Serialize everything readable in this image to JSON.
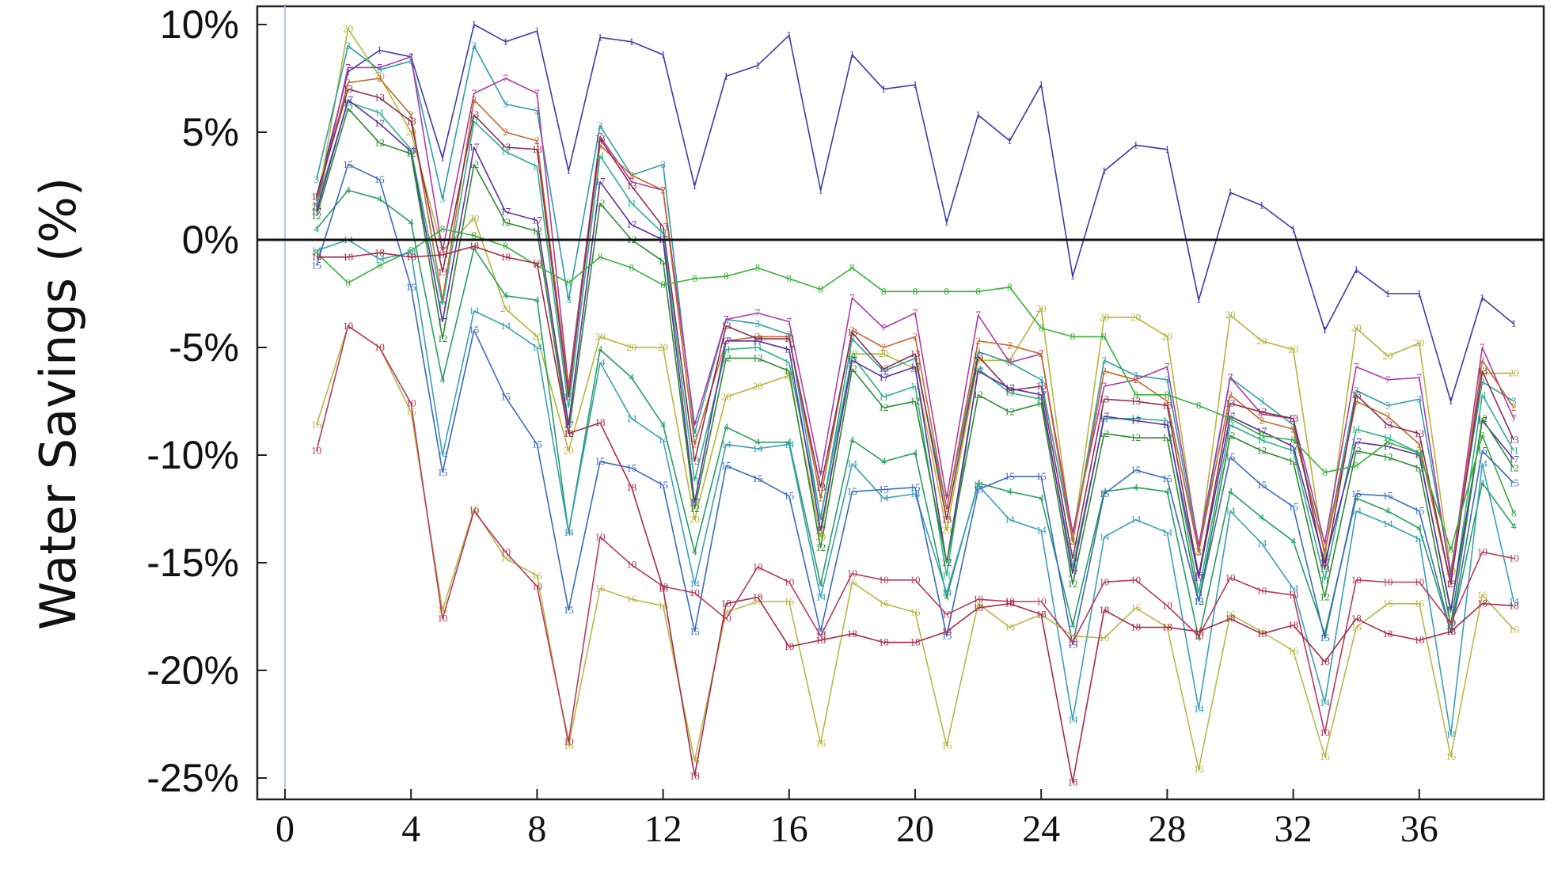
{
  "chart_data": {
    "type": "line",
    "title": "",
    "xlabel": "",
    "ylabel": "Water Savings (%)",
    "xlim": [
      0,
      39
    ],
    "ylim": [
      -26,
      10.5
    ],
    "xticks": [
      0,
      4,
      8,
      12,
      16,
      20,
      24,
      28,
      32,
      36
    ],
    "xtick_labels": [
      "0",
      "4",
      "8",
      "12",
      "16",
      "20",
      "24",
      "28",
      "32",
      "36"
    ],
    "yticks": [
      10,
      5,
      0,
      -5,
      -10,
      -15,
      -20,
      -25
    ],
    "ytick_labels": [
      "10%",
      "5%",
      "0%",
      "-5%",
      "-10%",
      "-15%",
      "-20%",
      "-25%"
    ],
    "reference_line_y": 0,
    "x": [
      1,
      2,
      3,
      4,
      5,
      6,
      7,
      8,
      9,
      10,
      11,
      12,
      13,
      14,
      15,
      16,
      17,
      18,
      19,
      20,
      21,
      22,
      23,
      24,
      25,
      26,
      27,
      28,
      29,
      30,
      31,
      32,
      33,
      34,
      35,
      36,
      37,
      38,
      39
    ],
    "series": [
      {
        "name": "1",
        "color": "#3a3ab0",
        "values": [
          2.0,
          7.8,
          8.8,
          8.5,
          3.8,
          10.0,
          9.2,
          9.7,
          3.2,
          9.4,
          9.2,
          8.6,
          2.5,
          7.6,
          8.1,
          9.5,
          2.3,
          8.6,
          7.0,
          7.2,
          0.8,
          5.8,
          4.6,
          7.2,
          -1.7,
          3.2,
          4.4,
          4.2,
          -2.8,
          2.2,
          1.6,
          0.5,
          -4.2,
          -1.4,
          -2.5,
          -2.5,
          -7.5,
          -2.7,
          -3.9
        ]
      },
      {
        "name": "20",
        "color": "#b7b53c",
        "values": [
          1.5,
          9.8,
          7.6,
          5.0,
          -0.5,
          1.0,
          -3.2,
          -4.5,
          -9.8,
          -4.5,
          -5.0,
          -5.0,
          -13.0,
          -7.3,
          -6.8,
          -6.3,
          -13.8,
          -5.3,
          -5.3,
          -6.0,
          -13.5,
          -5.6,
          -5.6,
          -3.2,
          -14.0,
          -3.6,
          -3.6,
          -4.5,
          -14.5,
          -3.5,
          -4.7,
          -5.1,
          -14.8,
          -4.1,
          -5.4,
          -4.8,
          -15.4,
          -6.2,
          -6.2
        ]
      },
      {
        "name": "3",
        "color": "#2f9ea8",
        "values": [
          2.8,
          9.0,
          7.9,
          8.3,
          1.9,
          9.0,
          6.3,
          6.0,
          -2.8,
          5.3,
          3.0,
          3.5,
          -9.0,
          -3.7,
          -3.9,
          -4.4,
          -13.0,
          -4.6,
          -6.1,
          -5.5,
          -12.5,
          -5.2,
          -5.7,
          -6.5,
          -14.0,
          -5.6,
          -6.3,
          -6.5,
          -14.5,
          -6.4,
          -7.5,
          -8.6,
          -14.5,
          -7.0,
          -7.7,
          -7.4,
          -15.5,
          -6.6,
          -7.5
        ]
      },
      {
        "name": "7",
        "color": "#b03aa8",
        "values": [
          1.5,
          8.0,
          8.0,
          8.5,
          -0.5,
          6.8,
          7.5,
          6.8,
          -6.8,
          4.8,
          2.7,
          2.3,
          -8.6,
          -3.7,
          -3.4,
          -3.8,
          -10.9,
          -2.7,
          -4.1,
          -3.4,
          -12.0,
          -3.5,
          -5.7,
          -5.3,
          -13.6,
          -6.8,
          -6.5,
          -5.9,
          -14.2,
          -6.4,
          -8.1,
          -8.3,
          -14.1,
          -5.9,
          -6.5,
          -6.4,
          -15.7,
          -5.0,
          -8.3
        ]
      },
      {
        "name": "2",
        "color": "#c26a2c",
        "values": [
          1.8,
          7.3,
          7.5,
          5.8,
          -2.8,
          6.5,
          5.0,
          4.6,
          -7.0,
          4.4,
          3.0,
          2.3,
          -9.5,
          -4.7,
          -4.5,
          -4.5,
          -12.0,
          -4.2,
          -5.0,
          -4.5,
          -12.5,
          -4.7,
          -4.9,
          -5.3,
          -14.0,
          -6.1,
          -6.5,
          -7.5,
          -14.5,
          -7.2,
          -8.4,
          -8.8,
          -14.5,
          -7.5,
          -8.2,
          -9.5,
          -16.0,
          -5.6,
          -7.8
        ]
      },
      {
        "name": "13",
        "color": "#8a3050",
        "values": [
          2.0,
          7.0,
          6.6,
          5.5,
          -1.5,
          5.8,
          4.3,
          4.2,
          -7.3,
          4.7,
          2.5,
          0.6,
          -10.3,
          -4.0,
          -4.6,
          -4.6,
          -11.5,
          -4.3,
          -6.0,
          -5.3,
          -13.0,
          -5.4,
          -7.0,
          -6.8,
          -14.8,
          -7.4,
          -7.5,
          -7.7,
          -15.6,
          -7.6,
          -8.0,
          -8.3,
          -15.3,
          -7.2,
          -8.6,
          -9.0,
          -16.0,
          -6.1,
          -9.3
        ]
      },
      {
        "name": "11",
        "color": "#2fb08c",
        "values": [
          1.6,
          6.4,
          5.9,
          4.2,
          -3.0,
          5.5,
          4.1,
          3.4,
          -7.8,
          3.9,
          1.7,
          0.3,
          -11.2,
          -5.1,
          -5.0,
          -5.7,
          -12.9,
          -5.4,
          -7.3,
          -6.8,
          -15.6,
          -6.0,
          -7.1,
          -7.4,
          -15.2,
          -8.3,
          -8.3,
          -8.4,
          -16.4,
          -8.6,
          -9.3,
          -9.8,
          -15.8,
          -8.8,
          -9.2,
          -9.9,
          -17.3,
          -7.2,
          -9.8
        ]
      },
      {
        "name": "17",
        "color": "#5a30a0",
        "values": [
          1.3,
          6.5,
          5.4,
          4.1,
          -3.8,
          4.3,
          1.3,
          0.9,
          -8.6,
          2.7,
          0.7,
          0.0,
          -12.2,
          -4.7,
          -4.7,
          -5.1,
          -13.5,
          -5.6,
          -6.4,
          -5.9,
          -15.0,
          -6.1,
          -6.9,
          -7.2,
          -15.5,
          -8.2,
          -8.4,
          -8.6,
          -15.7,
          -8.2,
          -8.9,
          -9.6,
          -15.0,
          -9.4,
          -9.6,
          -10.0,
          -17.2,
          -8.4,
          -10.2
        ]
      },
      {
        "name": "12",
        "color": "#2f8a30",
        "values": [
          1.1,
          6.1,
          4.5,
          4.0,
          -4.6,
          3.5,
          0.8,
          0.4,
          -9.0,
          1.7,
          0.0,
          -1.0,
          -12.5,
          -5.5,
          -5.5,
          -6.1,
          -14.3,
          -6.0,
          -7.8,
          -7.5,
          -15.0,
          -7.2,
          -8.0,
          -7.6,
          -16.0,
          -9.0,
          -9.2,
          -9.2,
          -16.8,
          -9.1,
          -9.8,
          -10.3,
          -16.6,
          -9.8,
          -10.1,
          -10.6,
          -17.9,
          -8.3,
          -10.6
        ]
      },
      {
        "name": "8",
        "color": "#38b038",
        "values": [
          -0.6,
          -2.0,
          -1.2,
          -0.5,
          0.5,
          0.2,
          -0.3,
          -1.2,
          -2.0,
          -0.8,
          -1.3,
          -2.1,
          -1.8,
          -1.7,
          -1.3,
          -1.8,
          -2.3,
          -1.3,
          -2.4,
          -2.4,
          -2.4,
          -2.4,
          -2.2,
          -4.1,
          -4.5,
          -4.5,
          -7.2,
          -7.2,
          -7.7,
          -8.3,
          -9.1,
          -9.3,
          -10.8,
          -10.5,
          -9.4,
          -9.9,
          -14.4,
          -9.1,
          -12.7
        ]
      },
      {
        "name": "4",
        "color": "#26a060",
        "values": [
          0.5,
          2.3,
          1.9,
          0.8,
          -6.5,
          -0.4,
          -2.6,
          -2.8,
          -13.6,
          -5.1,
          -6.4,
          -8.6,
          -14.5,
          -8.7,
          -9.4,
          -9.4,
          -16.0,
          -9.3,
          -10.3,
          -9.9,
          -16.6,
          -11.3,
          -11.7,
          -12.0,
          -17.9,
          -11.7,
          -11.5,
          -11.7,
          -18.5,
          -11.7,
          -12.9,
          -14.0,
          -18.3,
          -12.0,
          -12.6,
          -13.4,
          -18.2,
          -11.3,
          -13.3
        ]
      },
      {
        "name": "14",
        "color": "#3aa0b8",
        "values": [
          -0.5,
          0.0,
          -0.9,
          -0.6,
          -10.0,
          -3.3,
          -4.0,
          -5.0,
          -13.6,
          -5.7,
          -8.3,
          -9.3,
          -16.0,
          -9.5,
          -9.7,
          -9.5,
          -16.6,
          -10.4,
          -12.0,
          -11.8,
          -16.4,
          -11.4,
          -13.0,
          -13.5,
          -22.3,
          -13.8,
          -13.0,
          -13.6,
          -21.8,
          -12.6,
          -14.1,
          -16.2,
          -21.5,
          -12.6,
          -13.2,
          -13.9,
          -23.0,
          -10.4,
          -16.8
        ]
      },
      {
        "name": "15",
        "color": "#3a6ac0",
        "values": [
          -1.2,
          3.5,
          2.8,
          -2.2,
          -10.8,
          -4.2,
          -7.3,
          -9.5,
          -17.2,
          -10.3,
          -10.6,
          -11.4,
          -18.2,
          -10.5,
          -11.1,
          -11.9,
          -18.2,
          -11.7,
          -11.6,
          -11.5,
          -18.4,
          -11.6,
          -11.0,
          -11.0,
          -18.8,
          -11.8,
          -10.7,
          -11.1,
          -16.8,
          -10.1,
          -11.4,
          -12.4,
          -18.5,
          -11.8,
          -11.9,
          -12.6,
          -18.2,
          -9.8,
          -11.3
        ]
      },
      {
        "name": "16",
        "color": "#b8b84a",
        "values": [
          -8.6,
          -4.0,
          -5.0,
          -8.0,
          -17.2,
          -12.5,
          -14.8,
          -15.6,
          -23.5,
          -16.2,
          -16.7,
          -17.0,
          -24.2,
          -17.3,
          -16.8,
          -16.8,
          -23.4,
          -15.9,
          -16.9,
          -17.3,
          -23.5,
          -16.9,
          -18.0,
          -17.4,
          -18.4,
          -18.5,
          -17.1,
          -18.0,
          -24.6,
          -17.4,
          -18.2,
          -19.1,
          -24.0,
          -18.0,
          -16.9,
          -16.9,
          -24.0,
          -16.5,
          -18.1
        ]
      },
      {
        "name": "10",
        "color": "#b83a5a",
        "values": [
          -9.8,
          -4.0,
          -5.0,
          -7.6,
          -17.6,
          -12.6,
          -14.5,
          -16.1,
          -23.3,
          -13.8,
          -15.1,
          -16.1,
          -16.4,
          -17.6,
          -15.2,
          -15.9,
          -18.4,
          -15.5,
          -15.8,
          -15.8,
          -17.4,
          -16.7,
          -16.8,
          -16.8,
          -18.7,
          -15.9,
          -15.8,
          -17.0,
          -18.4,
          -15.7,
          -16.3,
          -16.5,
          -22.9,
          -15.8,
          -15.9,
          -15.9,
          -17.8,
          -14.5,
          -14.8
        ]
      },
      {
        "name": "18",
        "color": "#a82a4a",
        "values": [
          -0.8,
          -0.8,
          -0.6,
          -0.8,
          -0.7,
          -0.3,
          -0.8,
          -1.1,
          -9.0,
          -8.5,
          -11.5,
          -16.2,
          -24.9,
          -16.9,
          -16.6,
          -18.9,
          -18.6,
          -18.3,
          -18.7,
          -18.7,
          -18.2,
          -17.1,
          -16.9,
          -17.4,
          -25.2,
          -17.2,
          -18.0,
          -18.0,
          -18.2,
          -17.6,
          -18.3,
          -17.9,
          -19.6,
          -17.6,
          -18.3,
          -18.6,
          -18.2,
          -16.9,
          -17.0
        ]
      }
    ]
  }
}
